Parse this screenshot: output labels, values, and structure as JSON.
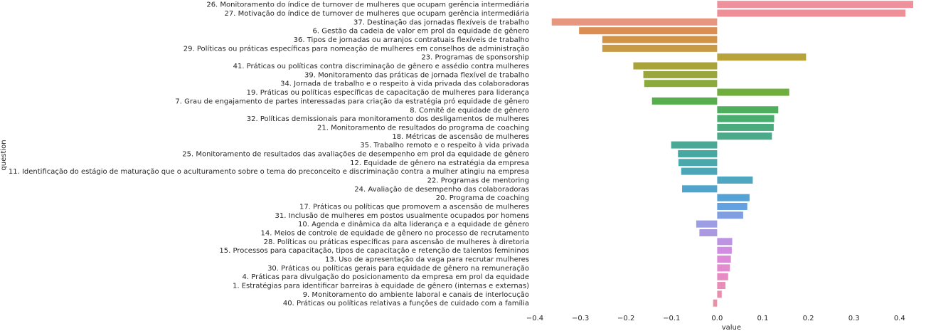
{
  "chart_data": {
    "type": "bar",
    "orientation": "horizontal",
    "xlabel": "value",
    "ylabel": "question",
    "xlim": [
      -0.4,
      0.43
    ],
    "xticks": [
      "−0.4",
      "−0.3",
      "−0.2",
      "−0.1",
      "0.0",
      "0.1",
      "0.2",
      "0.3",
      "0.4"
    ],
    "xtick_values": [
      -0.4,
      -0.3,
      -0.2,
      -0.1,
      0.0,
      0.1,
      0.2,
      0.3,
      0.4
    ],
    "grid": false,
    "categories": [
      "26. Monitoramento do índice de turnover de mulheres que ocupam gerência intermediária",
      "27. Motivação do índice de turnover de mulheres que ocupam gerência intermediária",
      "37. Destinação das jornadas flexíveis de trabalho",
      "6. Gestão da cadeia de valor em prol da equidade de gênero",
      "36. Tipos de jornadas ou arranjos contratuais flexíveis de trabalho",
      "29. Políticas ou práticas específicas para nomeação de mulheres em conselhos de administração",
      "23. Programas de sponsorship",
      "41. Práticas ou políticas contra discriminação de gênero e assédio contra mulheres",
      "39. Monitoramento das práticas de jornada flexível de trabalho",
      "34. Jornada de trabalho e o respeito à vida privada das colaboradoras",
      "19. Práticas ou políticas específicas de capacitação de mulheres para liderança",
      "7. Grau de engajamento de partes interessadas para criação da estratégia pró equidade de gênero",
      "8. Comitê de equidade de gênero",
      "32. Políticas demissionais para monitoramento dos desligamentos de mulheres",
      "21. Monitoramento de resultados do programa de coaching",
      "18. Métricas de ascensão de mulheres",
      "35. Trabalho remoto e o respeito à vida privada",
      "25. Monitoramento de resultados das avaliações de desempenho em prol da equidade de gênero",
      "12. Equidade de gênero na estratégia da empresa",
      "11. Identificação do estágio de maturação que o aculturamento sobre o tema do preconceito e discriminação contra a mulher atingiu na empresa",
      "22. Programas de mentoring",
      "24. Avaliação de desempenho das colaboradoras",
      "20. Programa de coaching",
      "17. Práticas ou políticas que promovem a ascensão de mulheres",
      "31. Inclusão de mulheres em postos usualmente ocupados por homens",
      "10. Agenda e dinâmica da alta liderança e a equidade de gênero",
      "14. Meios de controle de equidade de gênero no processo de recrutamento",
      "28. Políticas ou práticas específicas para ascensão de mulheres à diretoria",
      "15. Processos para capacitação, tipos de capacitação e retenção de talentos femininos",
      "13. Uso de apresentação da vaga para recrutar mulheres",
      "30. Práticas ou políticas gerais para equidade de gênero na remuneração",
      "4. Práticas para divulgação do posicionamento da empresa em prol da equidade",
      "1. Estratégias para identificar barreiras à equidade de gênero (internas e externas)",
      "9. Monitoramento do ambiente laboral e canais de interlocução",
      "40. Práticas ou políticas relativas a funções de cuidado com a família"
    ],
    "values": [
      0.43,
      0.413,
      -0.363,
      -0.303,
      -0.252,
      -0.252,
      0.195,
      -0.184,
      -0.162,
      -0.16,
      0.158,
      -0.143,
      0.134,
      0.125,
      0.124,
      0.12,
      -0.101,
      -0.086,
      -0.085,
      -0.079,
      0.078,
      -0.077,
      0.071,
      0.066,
      0.057,
      -0.046,
      -0.039,
      0.033,
      0.032,
      0.03,
      0.028,
      0.024,
      0.018,
      0.01,
      -0.009
    ],
    "colors": [
      "#ef919c",
      "#ee8e97",
      "#e69780",
      "#dc8d51",
      "#d39244",
      "#c99a45",
      "#b7a23c",
      "#a8a43b",
      "#9aa53b",
      "#8aab3c",
      "#6fae3d",
      "#56af4c",
      "#4eae5e",
      "#4aad70",
      "#4aab7f",
      "#4aaa8a",
      "#48a996",
      "#47a8a2",
      "#4aa8ad",
      "#4ba6b6",
      "#4ea6c1",
      "#4fa4cc",
      "#53a2d8",
      "#64a1e0",
      "#7f9fe2",
      "#9c9de3",
      "#aa98e1",
      "#bd93e3",
      "#d18de3",
      "#dd8ad8",
      "#e38bcf",
      "#e78cc3",
      "#e98cb7",
      "#ea8ead",
      "#ec8fa6"
    ]
  }
}
